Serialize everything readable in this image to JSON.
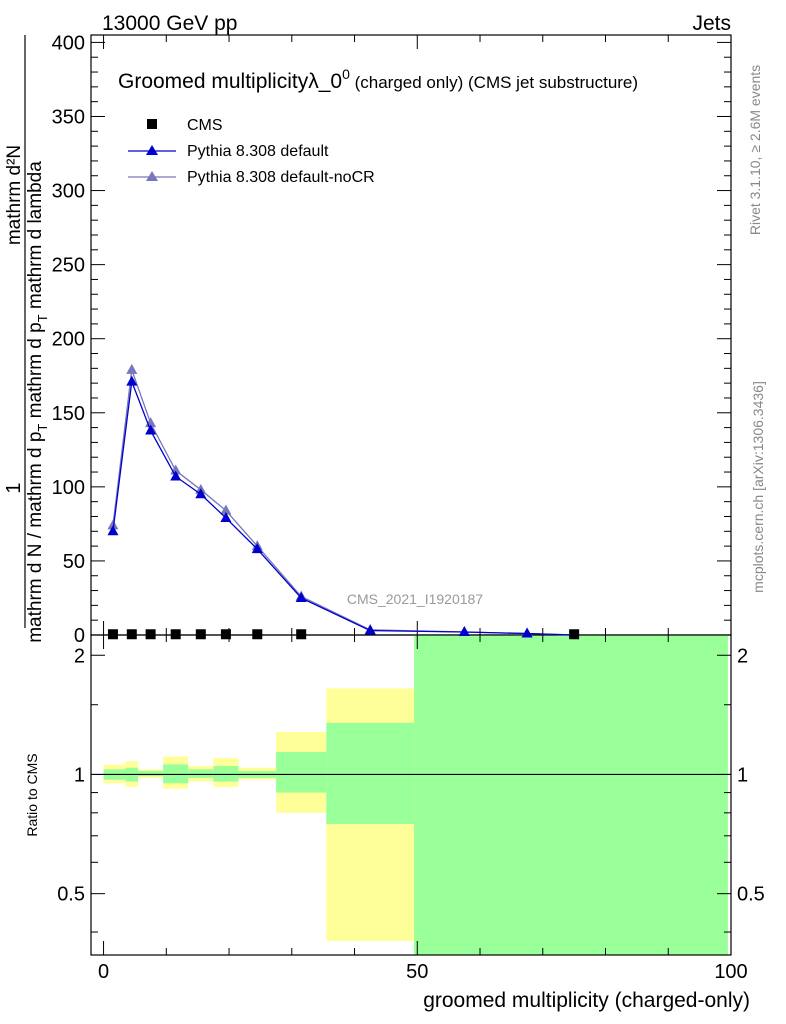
{
  "header": {
    "left": "13000 GeV pp",
    "right": "Jets"
  },
  "side_labels": {
    "rivet": "Rivet 3.1.10, ≥ 2.6M events",
    "mcplots": "mcplots.cern.ch [arXiv:1306.3436]"
  },
  "chart_data": {
    "type": "line",
    "title_main": "Groomed multiplicityλ_0",
    "title_sup": "0",
    "title_rest": " (charged only) (CMS jet substructure)",
    "analysis_id": "CMS_2021_I1920187",
    "xlabel": "groomed multiplicity (charged-only)",
    "ylabel_numerator": "mathrm d²N",
    "ylabel_numerator_1": "1",
    "ylabel_denominator": "mathrm d N / mathrm d p",
    "ylabel_full_top": "mathrm d p",
    "ylabel_full_top_sub": "T",
    "ylabel_full_top_rest": " mathrm d lambda",
    "ylabel_denominator_sub": "T",
    "ylabel_denominator_rest": " mathrm d p",
    "ratio_ylabel": "Ratio to CMS",
    "xlim": [
      -2,
      100
    ],
    "ylim": [
      0,
      405
    ],
    "x_ticks": [
      "0",
      "50",
      "100"
    ],
    "y_ticks": [
      "0",
      "50",
      "100",
      "150",
      "200",
      "250",
      "300",
      "350",
      "400"
    ],
    "ratio_ylim": [
      0.35,
      2.25
    ],
    "ratio_ticks": [
      "0.5",
      "1",
      "2"
    ],
    "legend": {
      "cms": "CMS",
      "default": "Pythia 8.308 default",
      "nocr": "Pythia 8.308 default-noCR"
    },
    "colors": {
      "cms": "#000000",
      "default": "#0000cc",
      "nocr": "#7777bb",
      "band_yellow": "#ffff99",
      "band_green": "#99ff99"
    },
    "cms": {
      "x": [
        1.5,
        4.5,
        7.5,
        11.5,
        15.5,
        19.5,
        24.5,
        31.5,
        42.5,
        57.5,
        75
      ],
      "y": [
        0.5,
        0.5,
        0.5,
        0.5,
        0.5,
        0.5,
        0.5,
        0.5,
        0.0,
        0.0,
        0.5
      ]
    },
    "series": [
      {
        "name": "Pythia 8.308 default",
        "x": [
          1.5,
          4.5,
          7.5,
          11.5,
          15.5,
          19.5,
          24.5,
          31.5,
          42.5,
          57.5,
          67.5,
          75
        ],
        "y": [
          70,
          171,
          138,
          107,
          95,
          79,
          58,
          25,
          3,
          2,
          1,
          0
        ]
      },
      {
        "name": "Pythia 8.308 default-noCR",
        "x": [
          1.5,
          4.5,
          7.5,
          11.5,
          15.5,
          19.5,
          24.5,
          31.5,
          42.5,
          57.5,
          67.5,
          75
        ],
        "y": [
          74,
          179,
          143,
          111,
          98,
          84,
          60,
          26,
          3.5,
          2,
          1,
          0
        ]
      }
    ],
    "ratio_bands": [
      {
        "x0": 0,
        "x1": 3.5,
        "yellow": [
          0.95,
          1.06
        ],
        "green": [
          0.97,
          1.03
        ]
      },
      {
        "x0": 3.5,
        "x1": 5.5,
        "yellow": [
          0.93,
          1.08
        ],
        "green": [
          0.96,
          1.04
        ]
      },
      {
        "x0": 5.5,
        "x1": 9.5,
        "yellow": [
          0.98,
          1.03
        ],
        "green": [
          0.99,
          1.02
        ]
      },
      {
        "x0": 9.5,
        "x1": 13.5,
        "yellow": [
          0.92,
          1.11
        ],
        "green": [
          0.95,
          1.06
        ]
      },
      {
        "x0": 13.5,
        "x1": 17.5,
        "yellow": [
          0.96,
          1.05
        ],
        "green": [
          0.98,
          1.03
        ]
      },
      {
        "x0": 17.5,
        "x1": 21.5,
        "yellow": [
          0.93,
          1.1
        ],
        "green": [
          0.96,
          1.05
        ]
      },
      {
        "x0": 21.5,
        "x1": 27.5,
        "yellow": [
          0.97,
          1.04
        ],
        "green": [
          0.98,
          1.02
        ]
      },
      {
        "x0": 27.5,
        "x1": 35.5,
        "yellow": [
          0.8,
          1.28
        ],
        "green": [
          0.9,
          1.14
        ]
      },
      {
        "x0": 35.5,
        "x1": 49.5,
        "yellow": [
          0.38,
          1.65
        ],
        "green": [
          0.75,
          1.35
        ]
      },
      {
        "x0": 49.5,
        "x1": 99.5,
        "yellow": [
          0.35,
          2.25
        ],
        "green": [
          0.35,
          2.25
        ]
      }
    ]
  }
}
